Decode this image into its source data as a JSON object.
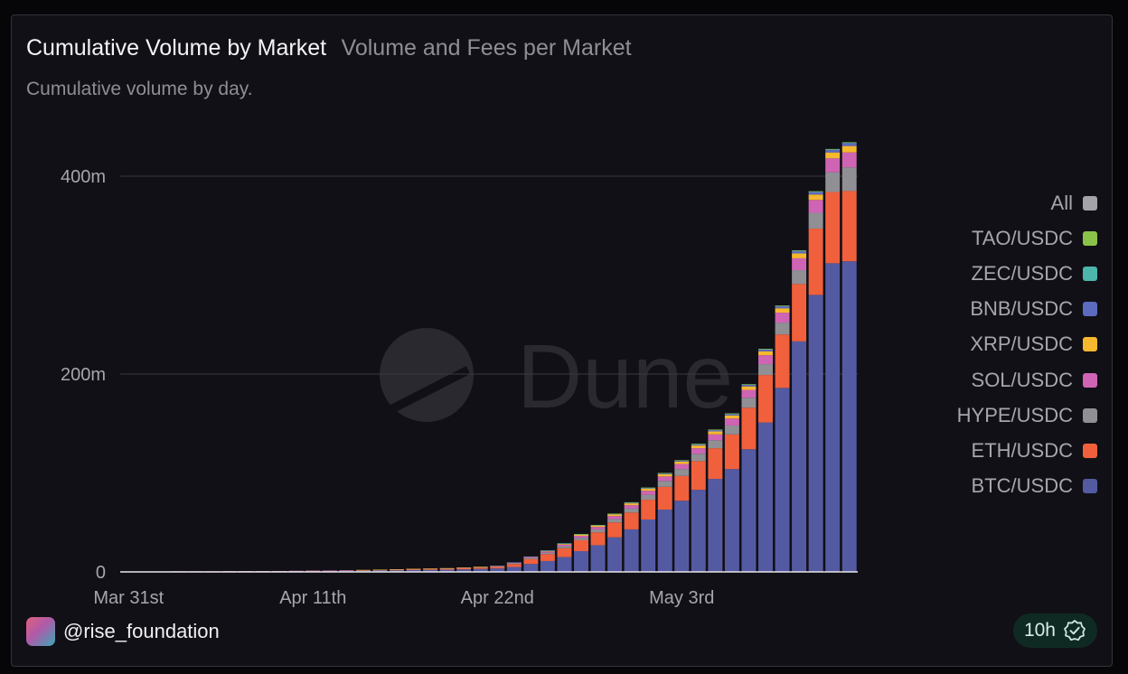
{
  "header": {
    "title": "Cumulative Volume by Market",
    "tab": "Volume and Fees per Market",
    "description": "Cumulative volume by day."
  },
  "watermark": "Dune",
  "footer": {
    "handle": "@rise_foundation",
    "refresh_label": "10h"
  },
  "chart_data": {
    "type": "bar",
    "stacked": true,
    "ylim": [
      0,
      440000000
    ],
    "y_ticks": [
      {
        "value": 0,
        "label": "0"
      },
      {
        "value": 200000000,
        "label": "200m"
      },
      {
        "value": 400000000,
        "label": "400m"
      }
    ],
    "x_ticks": [
      {
        "index": 0,
        "label": "Mar 31st"
      },
      {
        "index": 11,
        "label": "Apr 11th"
      },
      {
        "index": 22,
        "label": "Apr 22nd"
      },
      {
        "index": 33,
        "label": "May 3rd"
      }
    ],
    "grid": true,
    "legend_position": "right",
    "legend": [
      {
        "name": "All",
        "color": "#a3a3a8"
      },
      {
        "name": "TAO/USDC",
        "color": "#8bc34a"
      },
      {
        "name": "ZEC/USDC",
        "color": "#4db6ac"
      },
      {
        "name": "BNB/USDC",
        "color": "#5c6bc0"
      },
      {
        "name": "XRP/USDC",
        "color": "#f5b82e"
      },
      {
        "name": "SOL/USDC",
        "color": "#d064b4"
      },
      {
        "name": "HYPE/USDC",
        "color": "#8f8f94"
      },
      {
        "name": "ETH/USDC",
        "color": "#f0603c"
      },
      {
        "name": "BTC/USDC",
        "color": "#545aa2"
      }
    ],
    "series": [
      {
        "name": "BTC/USDC",
        "color": "#545aa2",
        "values": [
          0.3,
          0.3,
          0.3,
          0.4,
          0.4,
          0.4,
          0.5,
          0.5,
          0.6,
          0.6,
          0.7,
          0.8,
          0.9,
          1.0,
          1.2,
          1.4,
          1.6,
          1.8,
          2.0,
          2.3,
          2.6,
          3.0,
          3.5,
          5.0,
          8.0,
          11.0,
          15.0,
          21.0,
          27.0,
          35.0,
          43.0,
          53.0,
          63.0,
          72.0,
          83.0,
          94.0,
          104.0,
          124.0,
          151.0,
          186.0,
          233.0,
          280.0,
          312.0,
          314.0
        ]
      },
      {
        "name": "ETH/USDC",
        "color": "#f0603c",
        "values": [
          0.1,
          0.1,
          0.1,
          0.1,
          0.1,
          0.1,
          0.1,
          0.2,
          0.2,
          0.2,
          0.2,
          0.3,
          0.3,
          0.4,
          0.5,
          0.6,
          0.7,
          0.8,
          0.9,
          1.0,
          1.2,
          1.4,
          1.7,
          3.0,
          5.0,
          7.0,
          9.0,
          11.0,
          13.0,
          15.0,
          17.0,
          20.0,
          23.0,
          25.0,
          29.0,
          31.0,
          35.0,
          42.0,
          48.0,
          54.0,
          58.0,
          67.0,
          72.0,
          71.0
        ]
      },
      {
        "name": "HYPE/USDC",
        "color": "#8f8f94",
        "values": [
          0.05,
          0.05,
          0.05,
          0.05,
          0.05,
          0.05,
          0.05,
          0.05,
          0.05,
          0.1,
          0.1,
          0.1,
          0.1,
          0.1,
          0.1,
          0.1,
          0.2,
          0.2,
          0.2,
          0.2,
          0.3,
          0.3,
          0.4,
          0.8,
          1.2,
          1.5,
          2.0,
          2.5,
          3.0,
          3.5,
          4.0,
          5.0,
          6.0,
          7.0,
          7.5,
          8.0,
          9.0,
          10.0,
          11.0,
          12.0,
          14.0,
          16.0,
          20.0,
          24.0
        ]
      },
      {
        "name": "SOL/USDC",
        "color": "#d064b4",
        "values": [
          0.05,
          0.05,
          0.05,
          0.05,
          0.05,
          0.05,
          0.05,
          0.05,
          0.05,
          0.05,
          0.1,
          0.1,
          0.1,
          0.1,
          0.1,
          0.1,
          0.1,
          0.2,
          0.2,
          0.2,
          0.2,
          0.3,
          0.3,
          0.5,
          0.8,
          1.2,
          1.6,
          2.0,
          2.5,
          3.0,
          3.5,
          4.0,
          4.5,
          5.0,
          5.5,
          6.0,
          7.0,
          8.0,
          9.0,
          10.0,
          12.0,
          13.0,
          14.0,
          15.0
        ]
      },
      {
        "name": "XRP/USDC",
        "color": "#f5b82e",
        "values": [
          0,
          0,
          0,
          0,
          0,
          0,
          0,
          0,
          0,
          0,
          0,
          0,
          0,
          0,
          0.1,
          0.1,
          0.1,
          0.1,
          0.1,
          0.1,
          0.1,
          0.2,
          0.2,
          0.3,
          0.4,
          0.6,
          0.8,
          1.0,
          1.2,
          1.5,
          1.8,
          2.0,
          2.2,
          2.5,
          2.8,
          3.0,
          3.2,
          3.5,
          4.0,
          4.5,
          5.0,
          5.5,
          6.0,
          6.5
        ]
      },
      {
        "name": "BNB/USDC",
        "color": "#5c6bc0",
        "values": [
          0,
          0,
          0,
          0,
          0,
          0,
          0,
          0,
          0,
          0,
          0,
          0,
          0,
          0,
          0,
          0,
          0,
          0,
          0,
          0,
          0,
          0,
          0.1,
          0.1,
          0.2,
          0.3,
          0.4,
          0.5,
          0.6,
          0.7,
          0.8,
          0.9,
          1.0,
          1.1,
          1.2,
          1.4,
          1.5,
          1.7,
          1.9,
          2.1,
          2.3,
          2.5,
          2.7,
          3.0
        ]
      },
      {
        "name": "ZEC/USDC",
        "color": "#4db6ac",
        "values": [
          0,
          0,
          0,
          0,
          0,
          0,
          0,
          0,
          0,
          0,
          0,
          0,
          0,
          0,
          0,
          0,
          0,
          0,
          0,
          0,
          0,
          0,
          0,
          0,
          0,
          0.1,
          0.1,
          0.1,
          0.1,
          0.1,
          0.2,
          0.2,
          0.2,
          0.2,
          0.3,
          0.3,
          0.3,
          0.3,
          0.4,
          0.4,
          0.4,
          0.5,
          0.5,
          0.5
        ]
      },
      {
        "name": "TAO/USDC",
        "color": "#8bc34a",
        "values": [
          0,
          0,
          0,
          0,
          0,
          0,
          0,
          0,
          0,
          0,
          0,
          0,
          0,
          0,
          0,
          0,
          0,
          0,
          0,
          0,
          0,
          0,
          0,
          0,
          0,
          0,
          0,
          0.1,
          0.1,
          0.1,
          0.1,
          0.1,
          0.1,
          0.1,
          0.2,
          0.2,
          0.2,
          0.2,
          0.2,
          0.2,
          0.3,
          0.3,
          0.3,
          0.3
        ]
      }
    ],
    "value_unit_multiplier": 1000000
  }
}
